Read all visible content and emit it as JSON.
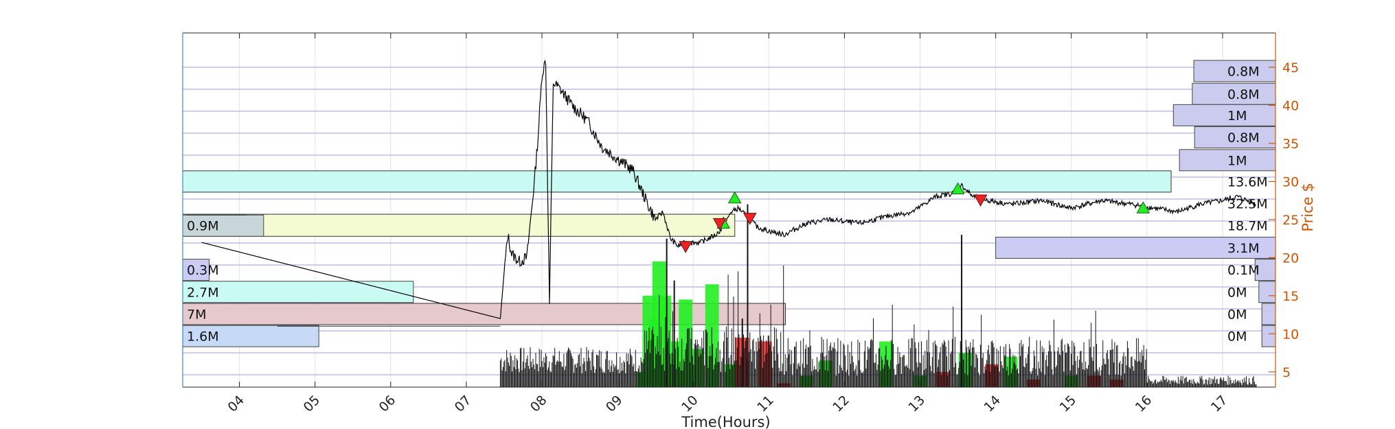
{
  "chart_data": {
    "type": "line",
    "xlabel": "Time(Hours)",
    "ylabel": "Price $",
    "xlim": [
      3.25,
      17.7
    ],
    "ylim": [
      3.0,
      49.5
    ],
    "x_ticks": [
      "04",
      "05",
      "06",
      "07",
      "08",
      "09",
      "10",
      "11",
      "12",
      "13",
      "14",
      "15",
      "16",
      "17"
    ],
    "x_tick_values": [
      4,
      5,
      6,
      7,
      8,
      9,
      10,
      11,
      12,
      13,
      14,
      15,
      16,
      17
    ],
    "y_ticks": [
      5,
      10,
      15,
      20,
      25,
      30,
      35,
      40,
      45
    ],
    "grid": true,
    "price_series": [
      [
        3.5,
        22.0
      ],
      [
        7.45,
        12.0
      ],
      [
        7.5,
        18.0
      ],
      [
        7.55,
        23.0
      ],
      [
        7.6,
        20.5
      ],
      [
        7.7,
        19.5
      ],
      [
        7.8,
        20.0
      ],
      [
        7.9,
        30.0
      ],
      [
        7.95,
        36.0
      ],
      [
        8.0,
        44.0
      ],
      [
        8.05,
        46.0
      ],
      [
        8.1,
        14.0
      ],
      [
        8.15,
        43.0
      ],
      [
        8.25,
        42.0
      ],
      [
        8.4,
        40.0
      ],
      [
        8.6,
        38.0
      ],
      [
        8.8,
        34.5
      ],
      [
        9.0,
        33.0
      ],
      [
        9.2,
        31.5
      ],
      [
        9.4,
        27.0
      ],
      [
        9.5,
        25.0
      ],
      [
        9.6,
        26.0
      ],
      [
        9.7,
        22.5
      ],
      [
        9.8,
        21.5
      ],
      [
        9.9,
        22.0
      ],
      [
        10.1,
        22.0
      ],
      [
        10.3,
        23.0
      ],
      [
        10.4,
        24.0
      ],
      [
        10.5,
        26.0
      ],
      [
        10.6,
        26.5
      ],
      [
        10.7,
        25.5
      ],
      [
        10.85,
        24.0
      ],
      [
        11.0,
        23.5
      ],
      [
        11.2,
        23.0
      ],
      [
        11.5,
        24.5
      ],
      [
        11.8,
        25.0
      ],
      [
        12.2,
        24.5
      ],
      [
        12.6,
        25.5
      ],
      [
        12.9,
        26.0
      ],
      [
        13.2,
        28.0
      ],
      [
        13.45,
        28.5
      ],
      [
        13.55,
        29.5
      ],
      [
        13.7,
        28.0
      ],
      [
        13.9,
        27.5
      ],
      [
        14.2,
        27.0
      ],
      [
        14.6,
        27.5
      ],
      [
        15.0,
        26.5
      ],
      [
        15.4,
        27.5
      ],
      [
        15.8,
        27.0
      ],
      [
        16.1,
        26.5
      ],
      [
        16.4,
        26.0
      ],
      [
        16.7,
        27.0
      ],
      [
        17.0,
        27.5
      ],
      [
        17.2,
        28.0
      ],
      [
        17.45,
        27.0
      ]
    ],
    "buy_markers": [
      [
        10.4,
        24.5
      ],
      [
        10.55,
        27.8
      ],
      [
        13.5,
        29.0
      ],
      [
        15.95,
        26.5
      ]
    ],
    "sell_markers": [
      [
        9.9,
        21.5
      ],
      [
        10.35,
        24.5
      ],
      [
        10.75,
        25.2
      ],
      [
        13.8,
        27.6
      ]
    ],
    "right_volume_profile": [
      {
        "label": "0.8M",
        "y": 44.5,
        "length": 1.08,
        "color": "#cacbee"
      },
      {
        "label": "0.8M",
        "y": 41.5,
        "length": 1.1,
        "color": "#cacbee"
      },
      {
        "label": "1M",
        "y": 38.7,
        "length": 1.35,
        "color": "#cacbee"
      },
      {
        "label": "0.8M",
        "y": 35.8,
        "length": 1.07,
        "color": "#cacbee"
      },
      {
        "label": "1M",
        "y": 32.8,
        "length": 1.27,
        "color": "#cacbee"
      },
      {
        "label": "13.6M",
        "y": 30.0,
        "length": 0,
        "color": "none"
      },
      {
        "label": "32.5M",
        "y": 27.1,
        "length": 0,
        "color": "none"
      },
      {
        "label": "18.7M",
        "y": 24.2,
        "length": 0,
        "color": "none"
      },
      {
        "label": "3.1M",
        "y": 21.3,
        "length": 3.7,
        "color": "#cbcbf4"
      },
      {
        "label": "0.1M",
        "y": 18.4,
        "length": 0.27,
        "color": "#cacbee"
      },
      {
        "label": "0M",
        "y": 15.5,
        "length": 0.22,
        "color": "#cacbee"
      },
      {
        "label": "0M",
        "y": 12.6,
        "length": 0.18,
        "color": "#cacbee"
      },
      {
        "label": "0M",
        "y": 9.7,
        "length": 0.18,
        "color": "#cacbee"
      }
    ],
    "left_volume_profile": [
      {
        "label": "0.9M",
        "y": 24.2,
        "length": 1.07,
        "color": "#c7d6d8"
      },
      {
        "label": "0.3M",
        "y": 18.4,
        "length": 0.35,
        "color": "#cbcbf4"
      },
      {
        "label": "2.7M",
        "y": 15.5,
        "length": 3.05,
        "color": "#c9fbf4"
      },
      {
        "label": "7M",
        "y": 12.6,
        "length": 0,
        "color": "none"
      },
      {
        "label": "1.6M",
        "y": 9.7,
        "length": 1.8,
        "color": "#c6daf7"
      }
    ],
    "price_bands": [
      {
        "y0": 28.6,
        "y1": 31.4,
        "x1": 16.32,
        "color": "#c9fbf4"
      },
      {
        "y0": 22.8,
        "y1": 25.7,
        "x1": 10.55,
        "color": "#f4fad2"
      },
      {
        "y0": 11.2,
        "y1": 14.0,
        "x1": 11.22,
        "color": "#e6c9cd"
      }
    ],
    "volume_bars": [
      [
        9.35,
        5.0,
        "#22ee22"
      ],
      [
        9.42,
        15.0,
        "#22ee22"
      ],
      [
        9.5,
        12.0,
        "#22ee22"
      ],
      [
        9.55,
        19.5,
        "#22ee22"
      ],
      [
        9.62,
        15.0,
        "#22ee22"
      ],
      [
        9.78,
        9.0,
        "#22ee22"
      ],
      [
        9.9,
        14.5,
        "#22ee22"
      ],
      [
        10.05,
        8.0,
        "#22ee22"
      ],
      [
        10.25,
        16.5,
        "#22ee22"
      ],
      [
        10.5,
        6.0,
        "#22ee22"
      ],
      [
        10.65,
        9.5,
        "#ee3333"
      ],
      [
        10.95,
        9.0,
        "#ee3333"
      ],
      [
        11.2,
        3.5,
        "#ee3333"
      ],
      [
        11.5,
        4.5,
        "#22ee22"
      ],
      [
        11.75,
        6.5,
        "#22ee22"
      ],
      [
        12.0,
        2.5,
        "#ee3333"
      ],
      [
        12.3,
        1.5,
        "#ee3333"
      ],
      [
        12.55,
        9.0,
        "#22ee22"
      ],
      [
        12.8,
        3.0,
        "#ee3333"
      ],
      [
        13.0,
        4.5,
        "#22ee22"
      ],
      [
        13.3,
        5.0,
        "#ee3333"
      ],
      [
        13.6,
        7.5,
        "#22ee22"
      ],
      [
        13.95,
        6.0,
        "#ee3333"
      ],
      [
        14.2,
        7.0,
        "#22ee22"
      ],
      [
        14.5,
        4.0,
        "#ee3333"
      ],
      [
        14.75,
        3.0,
        "#22ee22"
      ],
      [
        15.0,
        4.5,
        "#22ee22"
      ],
      [
        15.3,
        4.5,
        "#ee3333"
      ],
      [
        15.6,
        4.0,
        "#ee3333"
      ],
      [
        8.35,
        2.0,
        "#ee3333"
      ],
      [
        8.6,
        2.5,
        "#22ee22"
      ]
    ]
  }
}
